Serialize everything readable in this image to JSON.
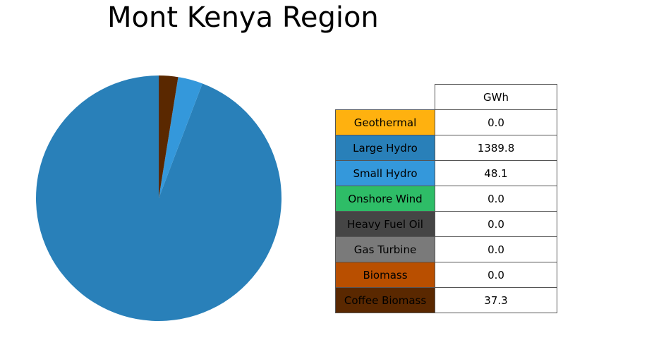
{
  "chart_data": {
    "type": "pie",
    "title": "Mont Kenya Region",
    "unit_header": "GWh",
    "slices": [
      {
        "label": "Geothermal",
        "value": 0.0,
        "display": "0.0",
        "color": "#ffb10f"
      },
      {
        "label": "Large Hydro",
        "value": 1389.8,
        "display": "1389.8",
        "color": "#2980b9"
      },
      {
        "label": "Small Hydro",
        "value": 48.1,
        "display": "48.1",
        "color": "#3498db"
      },
      {
        "label": "Onshore Wind",
        "value": 0.0,
        "display": "0.0",
        "color": "#2ebd67"
      },
      {
        "label": "Heavy Fuel Oil",
        "value": 0.0,
        "display": "0.0",
        "color": "#454545"
      },
      {
        "label": "Gas Turbine",
        "value": 0.0,
        "display": "0.0",
        "color": "#7a7a7a"
      },
      {
        "label": "Biomass",
        "value": 0.0,
        "display": "0.0",
        "color": "#b94f00"
      },
      {
        "label": "Coffee Biomass",
        "value": 37.3,
        "display": "37.3",
        "color": "#5a2800"
      }
    ],
    "start_angle": "top",
    "direction": "counterclockwise",
    "legend": "table-right"
  }
}
